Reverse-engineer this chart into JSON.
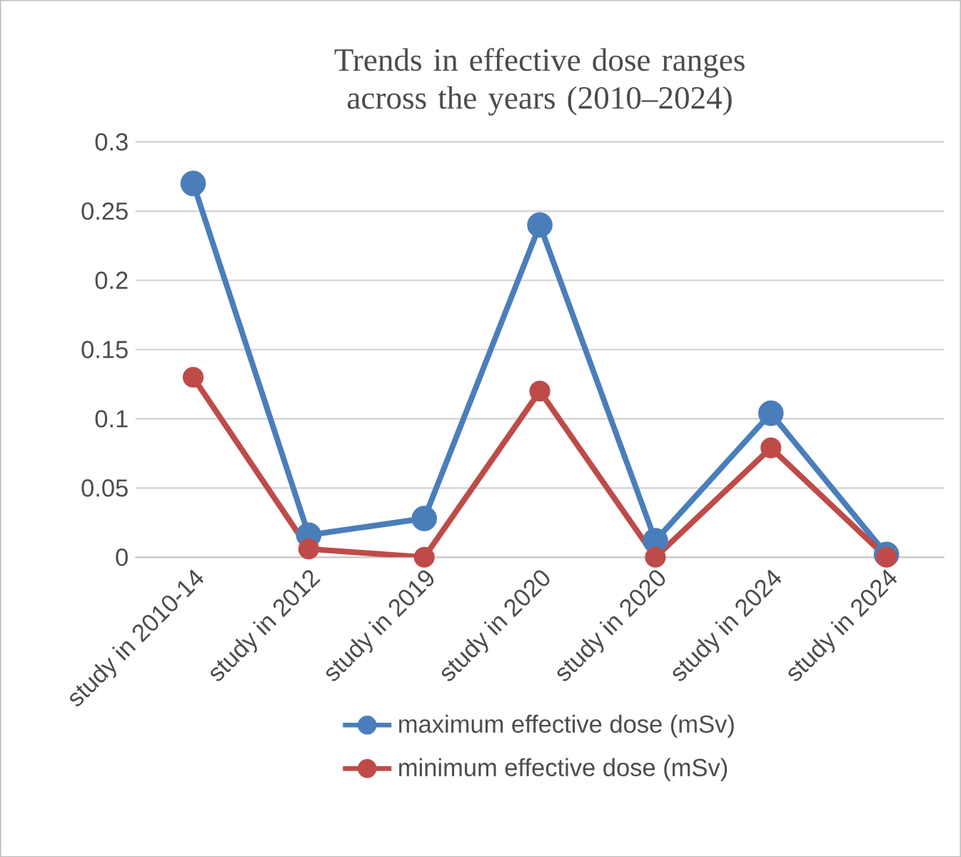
{
  "chart_data": {
    "type": "line",
    "title": "Trends in effective dose ranges across the years (2010–2024)",
    "categories": [
      "study in 2010-14",
      "study in 2012",
      "study in 2019",
      "study in 2020",
      "study in 2020",
      "study in 2024",
      "study in 2024"
    ],
    "series": [
      {
        "name": "maximum effective dose (mSv)",
        "color": "#4a7ebb",
        "values": [
          0.27,
          0.016,
          0.028,
          0.24,
          0.012,
          0.104,
          0.002
        ]
      },
      {
        "name": "minimum effective dose (mSv)",
        "color": "#be4b48",
        "values": [
          0.13,
          0.006,
          0.0,
          0.12,
          0.0,
          0.079,
          0.0
        ]
      }
    ],
    "ylim": [
      0,
      0.3
    ],
    "yticks": [
      0,
      0.05,
      0.1,
      0.15,
      0.2,
      0.25,
      0.3
    ],
    "grid": "y",
    "legend": "bottom",
    "marker": "circle",
    "line_style": "solid"
  }
}
